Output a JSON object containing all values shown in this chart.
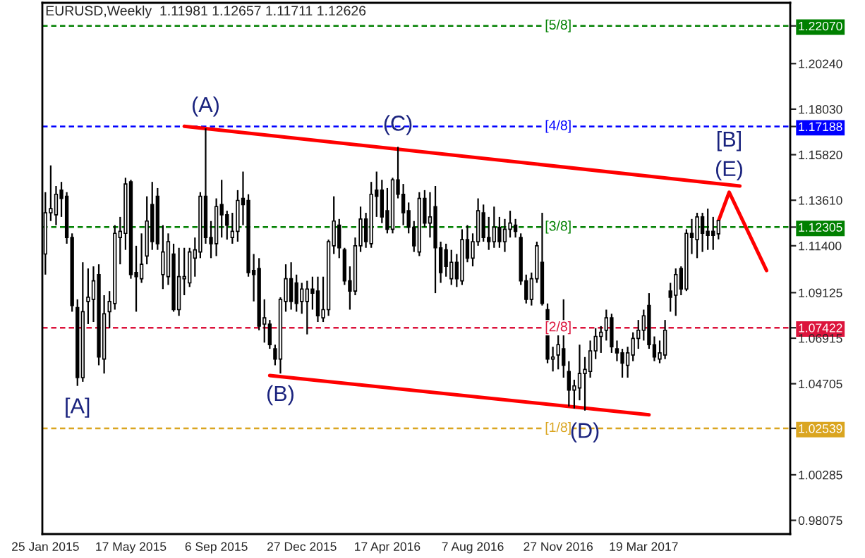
{
  "chart_data": {
    "type": "candlestick",
    "title": "EURUSD,Weekly  1.11981 1.12657 1.11711 1.12626",
    "x": [
      "2015-01-25",
      "2015-02-01",
      "2015-02-08",
      "2015-02-15",
      "2015-02-22",
      "2015-03-01",
      "2015-03-08",
      "2015-03-15",
      "2015-03-22",
      "2015-03-29",
      "2015-04-05",
      "2015-04-12",
      "2015-04-19",
      "2015-04-26",
      "2015-05-03",
      "2015-05-10",
      "2015-05-17",
      "2015-05-24",
      "2015-05-31",
      "2015-06-07",
      "2015-06-14",
      "2015-06-21",
      "2015-06-28",
      "2015-07-05",
      "2015-07-12",
      "2015-07-19",
      "2015-07-26",
      "2015-08-02",
      "2015-08-09",
      "2015-08-16",
      "2015-08-23",
      "2015-08-30",
      "2015-09-06",
      "2015-09-13",
      "2015-09-20",
      "2015-09-27",
      "2015-10-04",
      "2015-10-11",
      "2015-10-18",
      "2015-10-25",
      "2015-11-01",
      "2015-11-08",
      "2015-11-15",
      "2015-11-22",
      "2015-11-29",
      "2015-12-06",
      "2015-12-13",
      "2015-12-20",
      "2015-12-27",
      "2016-01-03",
      "2016-01-10",
      "2016-01-17",
      "2016-01-24",
      "2016-01-31",
      "2016-02-07",
      "2016-02-14",
      "2016-02-21",
      "2016-02-28",
      "2016-03-06",
      "2016-03-13",
      "2016-03-20",
      "2016-03-27",
      "2016-04-03",
      "2016-04-10",
      "2016-04-17",
      "2016-04-24",
      "2016-05-01",
      "2016-05-08",
      "2016-05-15",
      "2016-05-22",
      "2016-05-29",
      "2016-06-05",
      "2016-06-12",
      "2016-06-19",
      "2016-06-26",
      "2016-07-03",
      "2016-07-10",
      "2016-07-17",
      "2016-07-24",
      "2016-07-31",
      "2016-08-07",
      "2016-08-14",
      "2016-08-21",
      "2016-08-28",
      "2016-09-04",
      "2016-09-11",
      "2016-09-18",
      "2016-09-25",
      "2016-10-02",
      "2016-10-09",
      "2016-10-16",
      "2016-10-23",
      "2016-10-30",
      "2016-11-06",
      "2016-11-13",
      "2016-11-20",
      "2016-11-27",
      "2016-12-04",
      "2016-12-11",
      "2016-12-18",
      "2016-12-25",
      "2017-01-01",
      "2017-01-08",
      "2017-01-15",
      "2017-01-22",
      "2017-01-29",
      "2017-02-05",
      "2017-02-12",
      "2017-02-19",
      "2017-02-26",
      "2017-03-05",
      "2017-03-12",
      "2017-03-19",
      "2017-03-26",
      "2017-04-02",
      "2017-04-09",
      "2017-04-16",
      "2017-04-23",
      "2017-04-30",
      "2017-05-07",
      "2017-05-14",
      "2017-05-21",
      "2017-05-28",
      "2017-06-04",
      "2017-06-11",
      "2017-06-18",
      "2017-06-25"
    ],
    "ohlc": [
      [
        1.11,
        1.14,
        1.1,
        1.13
      ],
      [
        1.13,
        1.153,
        1.126,
        1.132
      ],
      [
        1.129,
        1.143,
        1.124,
        1.139
      ],
      [
        1.141,
        1.145,
        1.128,
        1.137
      ],
      [
        1.138,
        1.14,
        1.115,
        1.118
      ],
      [
        1.118,
        1.12,
        1.082,
        1.085
      ],
      [
        1.084,
        1.088,
        1.046,
        1.05
      ],
      [
        1.05,
        1.106,
        1.048,
        1.082
      ],
      [
        1.087,
        1.103,
        1.076,
        1.089
      ],
      [
        1.088,
        1.104,
        1.077,
        1.097
      ],
      [
        1.1,
        1.105,
        1.056,
        1.06
      ],
      [
        1.059,
        1.09,
        1.052,
        1.081
      ],
      [
        1.082,
        1.092,
        1.074,
        1.087
      ],
      [
        1.086,
        1.124,
        1.083,
        1.12
      ],
      [
        1.118,
        1.128,
        1.105,
        1.121
      ],
      [
        1.12,
        1.147,
        1.112,
        1.144
      ],
      [
        1.145,
        1.146,
        1.098,
        1.1
      ],
      [
        1.101,
        1.114,
        1.082,
        1.099
      ],
      [
        1.098,
        1.12,
        1.096,
        1.105
      ],
      [
        1.109,
        1.138,
        1.105,
        1.126
      ],
      [
        1.134,
        1.145,
        1.112,
        1.116
      ],
      [
        1.138,
        1.142,
        1.112,
        1.115
      ],
      [
        1.1,
        1.124,
        1.093,
        1.111
      ],
      [
        1.099,
        1.12,
        1.095,
        1.116
      ],
      [
        1.11,
        1.115,
        1.082,
        1.083
      ],
      [
        1.083,
        1.113,
        1.08,
        1.099
      ],
      [
        1.098,
        1.113,
        1.09,
        1.099
      ],
      [
        1.096,
        1.113,
        1.094,
        1.111
      ],
      [
        1.108,
        1.118,
        1.099,
        1.112
      ],
      [
        1.111,
        1.14,
        1.108,
        1.138
      ],
      [
        1.138,
        1.171,
        1.115,
        1.118
      ],
      [
        1.118,
        1.126,
        1.108,
        1.115
      ],
      [
        1.115,
        1.137,
        1.109,
        1.133
      ],
      [
        1.134,
        1.146,
        1.118,
        1.129
      ],
      [
        1.129,
        1.131,
        1.117,
        1.124
      ],
      [
        1.118,
        1.13,
        1.115,
        1.121
      ],
      [
        1.121,
        1.141,
        1.116,
        1.136
      ],
      [
        1.137,
        1.15,
        1.124,
        1.134
      ],
      [
        1.136,
        1.139,
        1.099,
        1.101
      ],
      [
        1.102,
        1.11,
        1.087,
        1.1
      ],
      [
        1.103,
        1.108,
        1.073,
        1.075
      ],
      [
        1.076,
        1.088,
        1.067,
        1.079
      ],
      [
        1.076,
        1.078,
        1.064,
        1.066
      ],
      [
        1.064,
        1.066,
        1.056,
        1.059
      ],
      [
        1.059,
        1.089,
        1.052,
        1.088
      ],
      [
        1.087,
        1.105,
        1.082,
        1.098
      ],
      [
        1.098,
        1.106,
        1.083,
        1.087
      ],
      [
        1.096,
        1.1,
        1.082,
        1.086
      ],
      [
        1.087,
        1.096,
        1.081,
        1.093
      ],
      [
        1.087,
        1.097,
        1.071,
        1.093
      ],
      [
        1.093,
        1.099,
        1.083,
        1.091
      ],
      [
        1.092,
        1.099,
        1.077,
        1.08
      ],
      [
        1.079,
        1.099,
        1.077,
        1.083
      ],
      [
        1.083,
        1.117,
        1.08,
        1.116
      ],
      [
        1.114,
        1.138,
        1.11,
        1.126
      ],
      [
        1.124,
        1.127,
        1.108,
        1.113
      ],
      [
        1.112,
        1.113,
        1.095,
        1.097
      ],
      [
        1.097,
        1.104,
        1.083,
        1.092
      ],
      [
        1.092,
        1.118,
        1.09,
        1.114
      ],
      [
        1.114,
        1.133,
        1.111,
        1.127
      ],
      [
        1.127,
        1.13,
        1.113,
        1.116
      ],
      [
        1.115,
        1.145,
        1.113,
        1.139
      ],
      [
        1.141,
        1.15,
        1.128,
        1.138
      ],
      [
        1.141,
        1.146,
        1.125,
        1.128
      ],
      [
        1.131,
        1.142,
        1.12,
        1.122
      ],
      [
        1.122,
        1.147,
        1.12,
        1.146
      ],
      [
        1.146,
        1.162,
        1.137,
        1.139
      ],
      [
        1.139,
        1.144,
        1.124,
        1.13
      ],
      [
        1.131,
        1.135,
        1.12,
        1.123
      ],
      [
        1.123,
        1.126,
        1.111,
        1.114
      ],
      [
        1.111,
        1.14,
        1.109,
        1.137
      ],
      [
        1.137,
        1.141,
        1.123,
        1.125
      ],
      [
        1.125,
        1.14,
        1.118,
        1.128
      ],
      [
        1.133,
        1.143,
        1.091,
        1.113
      ],
      [
        1.113,
        1.116,
        1.096,
        1.101
      ],
      [
        1.112,
        1.115,
        1.099,
        1.104
      ],
      [
        1.098,
        1.112,
        1.095,
        1.106
      ],
      [
        1.106,
        1.11,
        1.094,
        1.098
      ],
      [
        1.097,
        1.122,
        1.095,
        1.117
      ],
      [
        1.117,
        1.124,
        1.106,
        1.108
      ],
      [
        1.108,
        1.12,
        1.104,
        1.116
      ],
      [
        1.116,
        1.137,
        1.114,
        1.131
      ],
      [
        1.13,
        1.134,
        1.116,
        1.118
      ],
      [
        1.118,
        1.128,
        1.112,
        1.116
      ],
      [
        1.116,
        1.133,
        1.113,
        1.123
      ],
      [
        1.123,
        1.128,
        1.113,
        1.116
      ],
      [
        1.116,
        1.127,
        1.111,
        1.122
      ],
      [
        1.122,
        1.131,
        1.118,
        1.125
      ],
      [
        1.124,
        1.127,
        1.118,
        1.121
      ],
      [
        1.118,
        1.12,
        1.095,
        1.097
      ],
      [
        1.097,
        1.1,
        1.086,
        1.088
      ],
      [
        1.088,
        1.101,
        1.085,
        1.098
      ],
      [
        1.098,
        1.116,
        1.096,
        1.114
      ],
      [
        1.106,
        1.13,
        1.085,
        1.086
      ],
      [
        1.083,
        1.086,
        1.057,
        1.059
      ],
      [
        1.059,
        1.065,
        1.053,
        1.06
      ],
      [
        1.061,
        1.071,
        1.054,
        1.066
      ],
      [
        1.064,
        1.088,
        1.05,
        1.056
      ],
      [
        1.053,
        1.058,
        1.036,
        1.044
      ],
      [
        1.044,
        1.049,
        1.035,
        1.046
      ],
      [
        1.045,
        1.066,
        1.039,
        1.052
      ],
      [
        1.052,
        1.06,
        1.034,
        1.054
      ],
      [
        1.053,
        1.068,
        1.05,
        1.063
      ],
      [
        1.063,
        1.074,
        1.059,
        1.07
      ],
      [
        1.07,
        1.075,
        1.062,
        1.072
      ],
      [
        1.073,
        1.083,
        1.068,
        1.079
      ],
      [
        1.079,
        1.081,
        1.062,
        1.065
      ],
      [
        1.064,
        1.068,
        1.058,
        1.062
      ],
      [
        1.062,
        1.064,
        1.05,
        1.057
      ],
      [
        1.056,
        1.065,
        1.05,
        1.062
      ],
      [
        1.061,
        1.072,
        1.058,
        1.069
      ],
      [
        1.069,
        1.078,
        1.064,
        1.073
      ],
      [
        1.073,
        1.083,
        1.068,
        1.08
      ],
      [
        1.085,
        1.091,
        1.064,
        1.066
      ],
      [
        1.066,
        1.07,
        1.058,
        1.06
      ],
      [
        1.059,
        1.068,
        1.057,
        1.062
      ],
      [
        1.061,
        1.078,
        1.059,
        1.073
      ],
      [
        1.092,
        1.096,
        1.082,
        1.089
      ],
      [
        1.09,
        1.103,
        1.08,
        1.1
      ],
      [
        1.103,
        1.104,
        1.09,
        1.093
      ],
      [
        1.093,
        1.122,
        1.092,
        1.12
      ],
      [
        1.12,
        1.127,
        1.11,
        1.118
      ],
      [
        1.117,
        1.13,
        1.108,
        1.128
      ],
      [
        1.128,
        1.13,
        1.111,
        1.12
      ],
      [
        1.121,
        1.132,
        1.112,
        1.119
      ],
      [
        1.121,
        1.128,
        1.112,
        1.119
      ],
      [
        1.11981,
        1.12657,
        1.11711,
        1.12626
      ]
    ],
    "series": [
      {
        "type": "line",
        "color": "#ff0000",
        "x": [
          "2015-07-26",
          "2017-07-23"
        ],
        "values": [
          1.172,
          1.143
        ]
      },
      {
        "type": "line",
        "color": "#ff0000",
        "x": [
          "2015-11-15",
          "2017-03-26"
        ],
        "values": [
          1.051,
          1.032
        ]
      },
      {
        "type": "line",
        "color": "#ff0000",
        "x": [
          "2017-06-25",
          "2017-07-09",
          "2017-08-27"
        ],
        "values": [
          1.126,
          1.14,
          1.102
        ]
      }
    ],
    "ref_lines": [
      {
        "axis": "y",
        "value": 1.2207,
        "color": "#008000",
        "line_style": "dashed"
      },
      {
        "axis": "y",
        "value": 1.17188,
        "color": "#0000ff",
        "line_style": "dashed"
      },
      {
        "axis": "y",
        "value": 1.12305,
        "color": "#008000",
        "line_style": "dashed"
      },
      {
        "axis": "y",
        "value": 1.07422,
        "color": "#dc143c",
        "line_style": "dashed"
      },
      {
        "axis": "y",
        "value": 1.02539,
        "color": "#daa520",
        "line_style": "dashed"
      }
    ],
    "annotations": [
      {
        "text": "[5/8]",
        "x": "2016-11-27",
        "y": 1.2207
      },
      {
        "text": "[4/8]",
        "x": "2016-11-27",
        "y": 1.17188
      },
      {
        "text": "[3/8]",
        "x": "2016-11-27",
        "y": 1.12305
      },
      {
        "text": "[2/8]",
        "x": "2016-11-27",
        "y": 1.07422
      },
      {
        "text": "[1/8]",
        "x": "2016-11-27",
        "y": 1.02539
      },
      {
        "text": "(A)",
        "x": "2015-08-23",
        "y": 1.171
      },
      {
        "text": "[A]",
        "x": "2015-03-08",
        "y": 1.046
      },
      {
        "text": "(B)",
        "x": "2015-11-29",
        "y": 1.052
      },
      {
        "text": "(C)",
        "x": "2016-05-01",
        "y": 1.162
      },
      {
        "text": "(D)",
        "x": "2017-01-01",
        "y": 1.034
      },
      {
        "text": "(E)",
        "x": "2017-07-09",
        "y": 1.14
      },
      {
        "text": "[B]",
        "x": "2017-07-09",
        "y": 1.14
      }
    ],
    "xlim": [
      "2015-01-21",
      "2017-09-27"
    ],
    "xticks": [
      {
        "value": "2015-01-25",
        "label": "25 Jan 2015"
      },
      {
        "value": "2015-05-17",
        "label": "17 May 2015"
      },
      {
        "value": "2015-09-06",
        "label": "6 Sep 2015"
      },
      {
        "value": "2015-12-27",
        "label": "27 Dec 2015"
      },
      {
        "value": "2016-04-17",
        "label": "17 Apr 2016"
      },
      {
        "value": "2016-08-07",
        "label": "7 Aug 2016"
      },
      {
        "value": "2016-11-27",
        "label": "27 Nov 2016"
      },
      {
        "value": "2017-03-19",
        "label": "19 Mar 2017"
      }
    ],
    "ylim": [
      0.9741,
      1.2319
    ],
    "yticks": [
      {
        "value": 1.2207,
        "label": "1.22070"
      },
      {
        "value": 1.2024,
        "label": "1.20240"
      },
      {
        "value": 1.1803,
        "label": "1.18030"
      },
      {
        "value": 1.17188,
        "label": "1.17188"
      },
      {
        "value": 1.1582,
        "label": "1.15820"
      },
      {
        "value": 1.1361,
        "label": "1.13610"
      },
      {
        "value": 1.12305,
        "label": "1.12305"
      },
      {
        "value": 1.114,
        "label": "1.11400"
      },
      {
        "value": 1.09125,
        "label": "1.09125"
      },
      {
        "value": 1.07422,
        "label": "1.07422"
      },
      {
        "value": 1.06915,
        "label": "1.06915"
      },
      {
        "value": 1.04705,
        "label": "1.04705"
      },
      {
        "value": 1.02539,
        "label": "1.02539"
      },
      {
        "value": 1.00285,
        "label": "1.00285"
      },
      {
        "value": 0.98075,
        "label": "0.98075"
      }
    ],
    "grid": false,
    "legend": false
  }
}
